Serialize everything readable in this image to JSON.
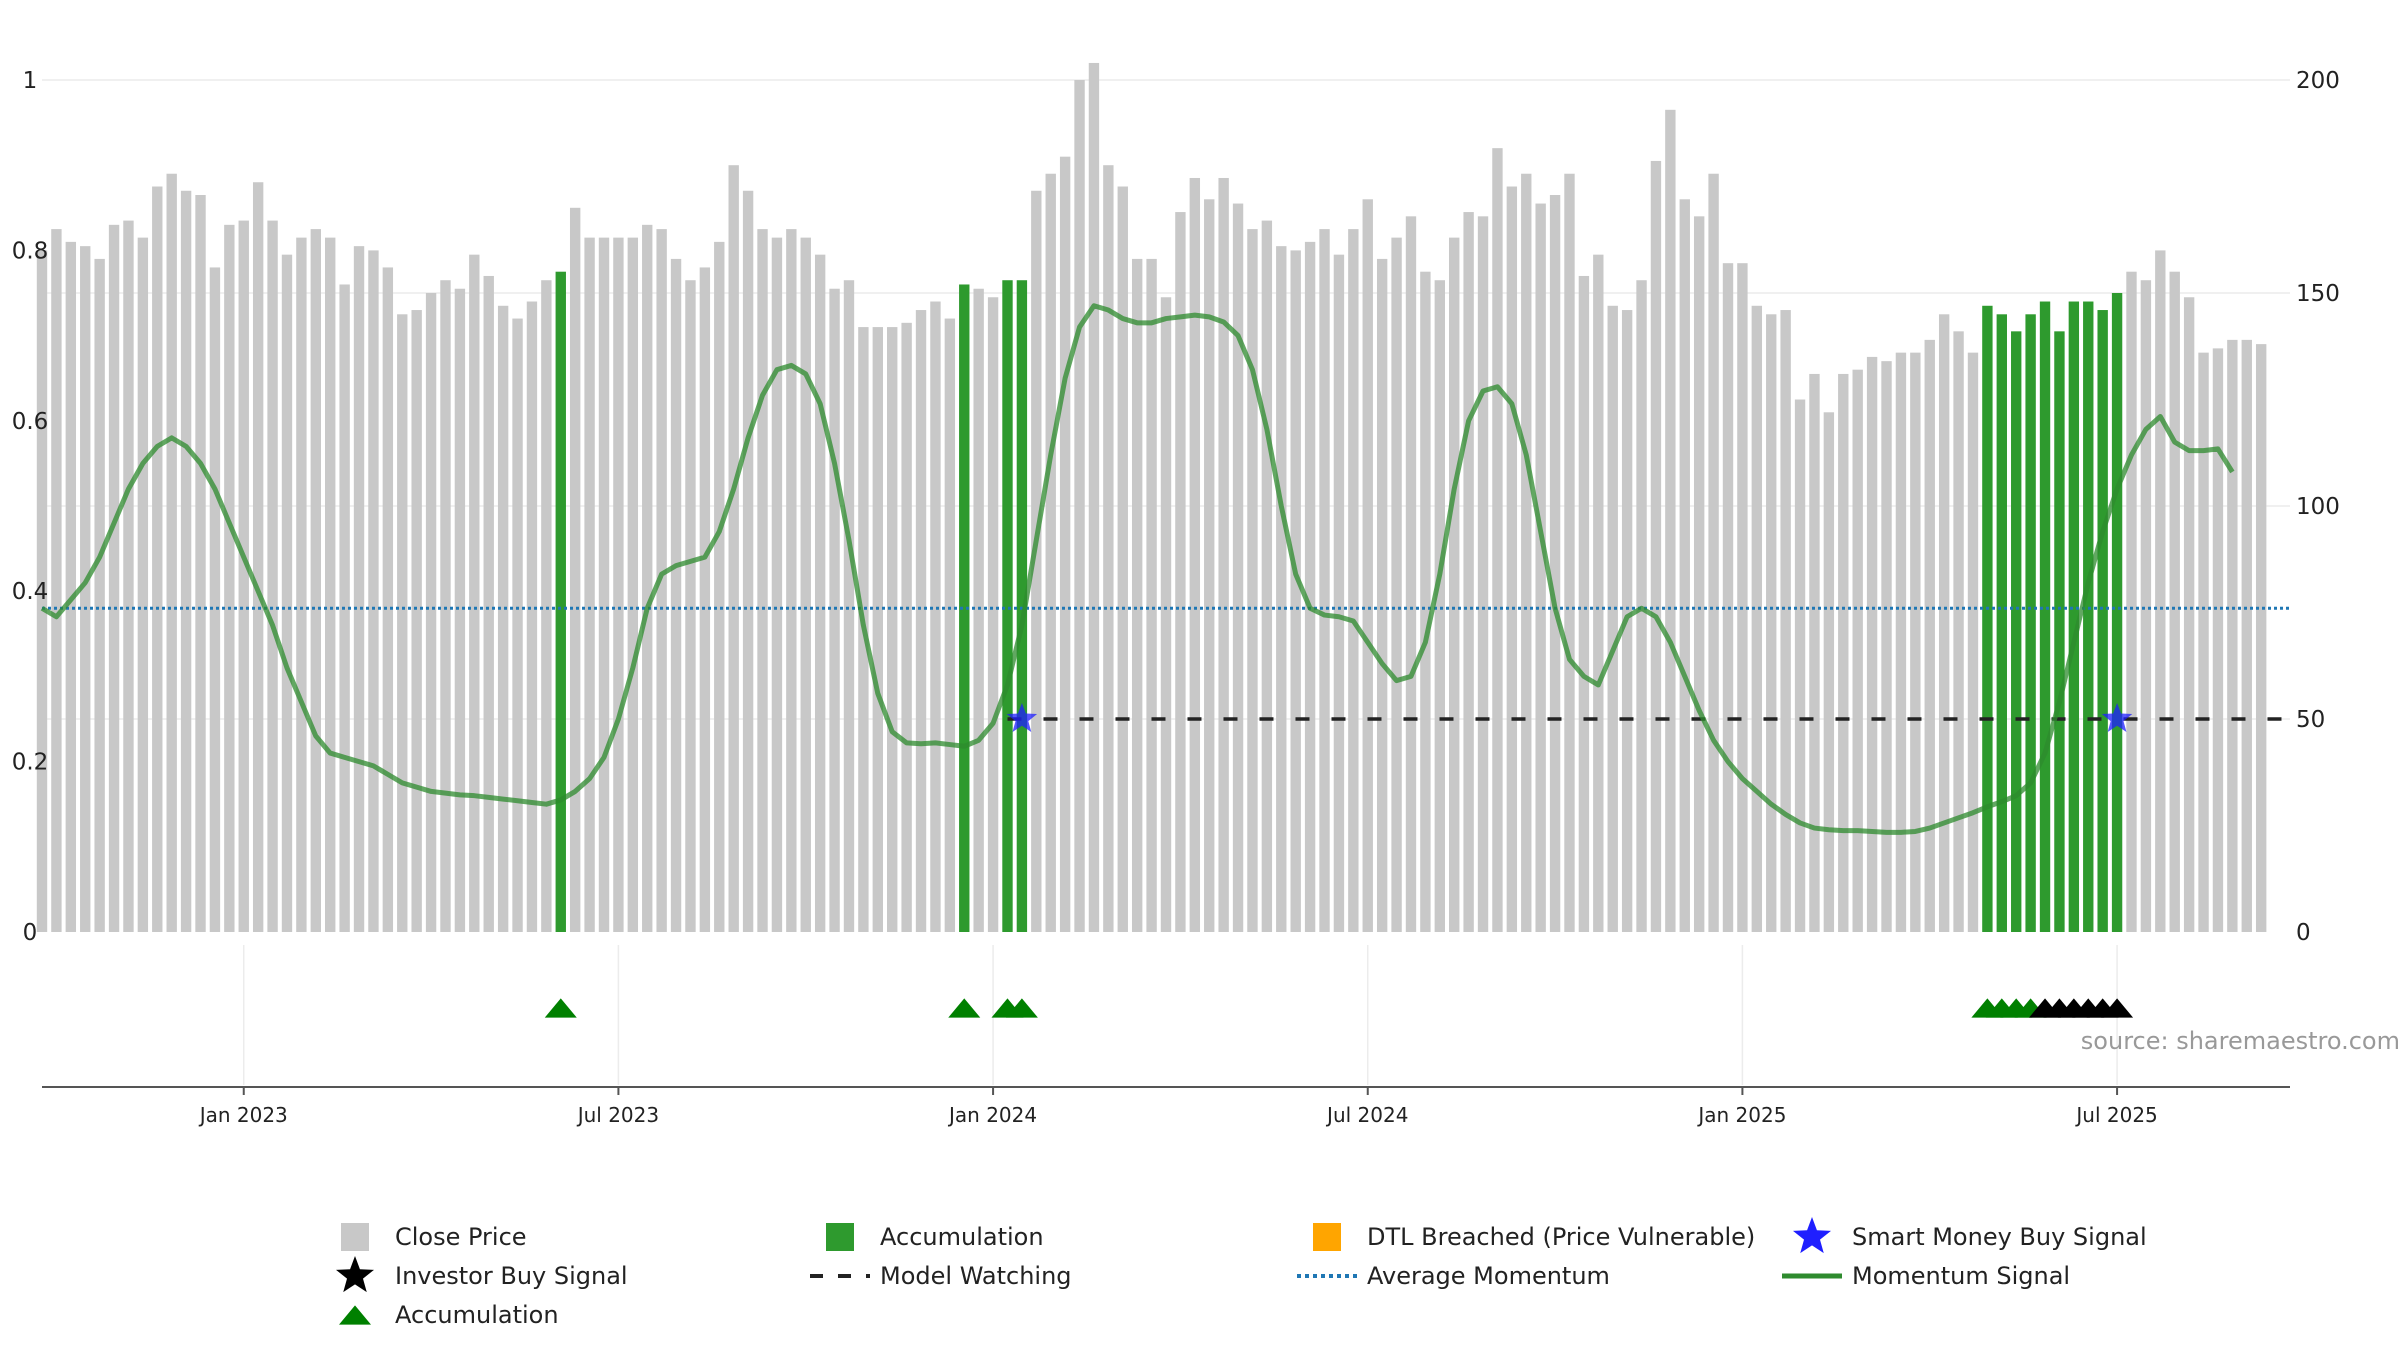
{
  "chart_data": {
    "type": "bar",
    "title": "",
    "source": "source: sharemaestro.com",
    "left_axis": {
      "ylim": [
        0,
        1
      ],
      "ticks": [
        0,
        0.2,
        0.4,
        0.6,
        0.8,
        1
      ],
      "tick_labels": [
        "0",
        "0.2",
        "0.4",
        "0.6",
        "0.8",
        "1"
      ]
    },
    "right_axis": {
      "ylim": [
        0,
        200
      ],
      "ticks": [
        0,
        50,
        100,
        150,
        200
      ],
      "tick_labels": [
        "0",
        "50",
        "100",
        "150",
        "200"
      ]
    },
    "x_axis": {
      "start_week": 0,
      "end_week": 156,
      "ticks": [
        {
          "week": 14,
          "label": "Jan 2023"
        },
        {
          "week": 40,
          "label": "Jul 2023"
        },
        {
          "week": 66,
          "label": "Jan 2024"
        },
        {
          "week": 92,
          "label": "Jul 2024"
        },
        {
          "week": 118,
          "label": "Jan 2025"
        },
        {
          "week": 144,
          "label": "Jul 2025"
        }
      ]
    },
    "close_price": [
      160,
      165,
      162,
      161,
      158,
      166,
      167,
      163,
      175,
      178,
      174,
      173,
      156,
      166,
      167,
      176,
      167,
      159,
      163,
      165,
      163,
      152,
      161,
      160,
      156,
      145,
      146,
      150,
      153,
      151,
      159,
      154,
      147,
      144,
      148,
      153,
      155,
      170,
      163,
      163,
      163,
      163,
      166,
      165,
      158,
      153,
      156,
      162,
      180,
      174,
      165,
      163,
      165,
      163,
      159,
      151,
      153,
      142,
      142,
      142,
      143,
      146,
      148,
      144,
      152,
      151,
      149,
      153,
      153,
      174,
      178,
      182,
      200,
      204,
      180,
      175,
      158,
      158,
      149,
      169,
      177,
      172,
      177,
      171,
      165,
      167,
      161,
      160,
      162,
      165,
      159,
      165,
      172,
      158,
      163,
      168,
      155,
      153,
      163,
      169,
      168,
      184,
      175,
      178,
      171,
      173,
      178,
      154,
      159,
      147,
      146,
      153,
      181,
      193,
      172,
      168,
      178,
      157,
      157,
      147,
      145,
      146,
      125,
      131,
      122,
      131,
      132,
      135,
      134,
      136,
      136,
      139,
      145,
      141,
      136,
      147,
      145,
      141,
      145,
      148,
      141,
      148,
      148,
      146,
      150,
      155,
      153,
      160,
      155,
      149,
      136,
      137,
      139,
      139,
      138
    ],
    "accumulation_bars": [
      36,
      64,
      67,
      68,
      135,
      136,
      137,
      138,
      139,
      140,
      141,
      142,
      143,
      144
    ],
    "momentum": [
      0.38,
      0.37,
      0.39,
      0.41,
      0.44,
      0.48,
      0.52,
      0.55,
      0.57,
      0.58,
      0.57,
      0.55,
      0.52,
      0.48,
      0.44,
      0.4,
      0.36,
      0.31,
      0.27,
      0.23,
      0.21,
      0.205,
      0.2,
      0.195,
      0.185,
      0.175,
      0.17,
      0.165,
      0.163,
      0.161,
      0.16,
      0.158,
      0.156,
      0.154,
      0.152,
      0.15,
      0.155,
      0.165,
      0.18,
      0.205,
      0.25,
      0.31,
      0.38,
      0.42,
      0.43,
      0.435,
      0.44,
      0.47,
      0.52,
      0.58,
      0.63,
      0.66,
      0.665,
      0.655,
      0.62,
      0.55,
      0.46,
      0.36,
      0.28,
      0.235,
      0.222,
      0.221,
      0.222,
      0.22,
      0.218,
      0.225,
      0.245,
      0.29,
      0.36,
      0.46,
      0.56,
      0.65,
      0.71,
      0.735,
      0.73,
      0.72,
      0.715,
      0.715,
      0.72,
      0.722,
      0.724,
      0.722,
      0.716,
      0.7,
      0.66,
      0.59,
      0.5,
      0.42,
      0.38,
      0.372,
      0.37,
      0.365,
      0.34,
      0.315,
      0.295,
      0.3,
      0.34,
      0.42,
      0.52,
      0.6,
      0.635,
      0.64,
      0.62,
      0.56,
      0.47,
      0.38,
      0.32,
      0.3,
      0.29,
      0.33,
      0.37,
      0.38,
      0.37,
      0.34,
      0.3,
      0.26,
      0.225,
      0.2,
      0.18,
      0.165,
      0.15,
      0.138,
      0.128,
      0.122,
      0.12,
      0.119,
      0.119,
      0.118,
      0.117,
      0.117,
      0.118,
      0.122,
      0.128,
      0.134,
      0.14,
      0.147,
      0.153,
      0.16,
      0.175,
      0.21,
      0.27,
      0.34,
      0.41,
      0.47,
      0.52,
      0.56,
      0.59,
      0.605,
      0.575,
      0.565,
      0.565,
      0.567,
      0.54
    ],
    "average_momentum": 0.38,
    "model_watching": {
      "value": 0.25,
      "start_week": 67,
      "end_week": 156
    },
    "smart_money_buy_signals": [
      {
        "week": 68,
        "value": 0.25
      },
      {
        "week": 144,
        "value": 0.25
      }
    ],
    "accumulation_markers": [
      36,
      64,
      67,
      68,
      135,
      136,
      137,
      138
    ],
    "investor_buy_markers": [
      139,
      140,
      141,
      142,
      143,
      144
    ],
    "legend": [
      "Close Price",
      "Accumulation",
      "DTL Breached (Price Vulnerable)",
      "Smart Money Buy Signal",
      "Investor Buy Signal",
      "Model Watching",
      "Average Momentum",
      "Momentum Signal",
      "Accumulation"
    ],
    "colors": {
      "close_price": "#c8c8c8",
      "accumulation_bar": "#2e9a2e",
      "accumulation_marker": "#008000",
      "investor_buy": "#000000",
      "dtl_breached": "#ffa500",
      "smart_money": "#1f1fff",
      "model_watching": "#222222",
      "average_momentum": "#1f77b4",
      "momentum": "#2e8b2e"
    }
  }
}
